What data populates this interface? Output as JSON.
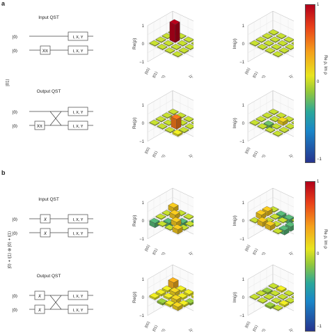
{
  "panels": [
    {
      "letter": "a",
      "side_label": "|01⟩",
      "input_title": "Input QST",
      "output_title": "Output QST",
      "circuit_in": {
        "rows": [
          {
            "state": "|0⟩",
            "gate": "",
            "meas": "I, X, Y"
          },
          {
            "state": "|0⟩",
            "gate": "Xπ",
            "meas": "I, X, Y"
          }
        ]
      },
      "circuit_out": {
        "rows": [
          {
            "state": "|0⟩",
            "gate": "",
            "meas": "I, X, Y"
          },
          {
            "state": "|0⟩",
            "gate": "Xπ",
            "meas": "I, X, Y"
          }
        ]
      },
      "colorbar": {
        "label": "Re ρ, Im ρ",
        "max": "1",
        "mid": "0",
        "min": "−1"
      }
    },
    {
      "letter": "b",
      "side_label": "|0⟩ + i|1⟩ ⊗ |0⟩ + i|1⟩",
      "input_title": "Input QST",
      "output_title": "Output QST",
      "circuit_in": {
        "rows": [
          {
            "state": "|0⟩",
            "gate": "X",
            "meas": "I, X, Y"
          },
          {
            "state": "|0⟩",
            "gate": "X",
            "meas": "I, X, Y"
          }
        ]
      },
      "circuit_out": {
        "rows": [
          {
            "state": "|0⟩",
            "gate": "X",
            "meas": "I, X, Y"
          },
          {
            "state": "|0⟩",
            "gate": "X",
            "meas": "I, X, Y"
          }
        ]
      },
      "colorbar": {
        "label": "Re ρ, Im ρ",
        "max": "1",
        "mid": "0",
        "min": "−1"
      }
    }
  ],
  "plot_axis": {
    "basis": [
      "|00⟩",
      "|01⟩",
      "|10⟩",
      "|11⟩"
    ],
    "z_ticks": [
      "1",
      "0",
      "−1"
    ],
    "re_label": "Re(ρ)",
    "im_label": "Im(ρ)"
  },
  "chart_data": [
    {
      "type": "bar3d",
      "panel": "a-in",
      "quantity": "Re",
      "basis": [
        "|00⟩",
        "|01⟩",
        "|10⟩",
        "|11⟩"
      ],
      "zlim": [
        -1,
        1
      ],
      "values": [
        [
          0,
          0,
          0,
          0
        ],
        [
          0,
          1,
          0,
          0
        ],
        [
          0,
          0,
          0,
          0
        ],
        [
          0,
          0,
          0,
          0
        ]
      ]
    },
    {
      "type": "bar3d",
      "panel": "a-in",
      "quantity": "Im",
      "basis": [
        "|00⟩",
        "|01⟩",
        "|10⟩",
        "|11⟩"
      ],
      "zlim": [
        -1,
        1
      ],
      "values": [
        [
          0,
          0,
          0,
          0
        ],
        [
          0,
          0,
          0,
          0
        ],
        [
          0,
          0,
          0,
          0
        ],
        [
          0,
          0,
          0,
          0
        ]
      ]
    },
    {
      "type": "bar3d",
      "panel": "a-out",
      "quantity": "Re",
      "basis": [
        "|00⟩",
        "|01⟩",
        "|10⟩",
        "|11⟩"
      ],
      "zlim": [
        -1,
        1
      ],
      "values": [
        [
          0,
          0,
          0,
          0
        ],
        [
          0,
          0.1,
          0,
          0
        ],
        [
          0,
          0,
          0.55,
          0
        ],
        [
          0,
          0,
          0,
          0.1
        ]
      ]
    },
    {
      "type": "bar3d",
      "panel": "a-out",
      "quantity": "Im",
      "basis": [
        "|00⟩",
        "|01⟩",
        "|10⟩",
        "|11⟩"
      ],
      "zlim": [
        -1,
        1
      ],
      "values": [
        [
          0,
          0,
          0,
          0
        ],
        [
          0,
          0,
          -0.2,
          0
        ],
        [
          0,
          0.2,
          0,
          0
        ],
        [
          0,
          0,
          0,
          0
        ]
      ]
    },
    {
      "type": "bar3d",
      "panel": "b-in",
      "quantity": "Re",
      "basis": [
        "|00⟩",
        "|01⟩",
        "|10⟩",
        "|11⟩"
      ],
      "zlim": [
        -1,
        1
      ],
      "values": [
        [
          0.25,
          0,
          0,
          -0.25
        ],
        [
          0,
          0.25,
          -0.25,
          0
        ],
        [
          0,
          -0.25,
          0.25,
          0
        ],
        [
          -0.25,
          0,
          0,
          0.25
        ]
      ]
    },
    {
      "type": "bar3d",
      "panel": "b-in",
      "quantity": "Im",
      "basis": [
        "|00⟩",
        "|01⟩",
        "|10⟩",
        "|11⟩"
      ],
      "zlim": [
        -1,
        1
      ],
      "values": [
        [
          0,
          0.25,
          0.25,
          0
        ],
        [
          -0.25,
          0,
          0,
          0.25
        ],
        [
          -0.25,
          0,
          0,
          0.25
        ],
        [
          0,
          -0.25,
          -0.25,
          0
        ]
      ]
    },
    {
      "type": "bar3d",
      "panel": "b-out",
      "quantity": "Re",
      "basis": [
        "|00⟩",
        "|01⟩",
        "|10⟩",
        "|11⟩"
      ],
      "zlim": [
        -1,
        1
      ],
      "values": [
        [
          0.35,
          0.1,
          0.1,
          0.1
        ],
        [
          0.1,
          0.2,
          0.1,
          -0.1
        ],
        [
          0.1,
          0.1,
          0.2,
          0.1
        ],
        [
          0.1,
          -0.1,
          0.1,
          0.2
        ]
      ]
    },
    {
      "type": "bar3d",
      "panel": "b-out",
      "quantity": "Im",
      "basis": [
        "|00⟩",
        "|01⟩",
        "|10⟩",
        "|11⟩"
      ],
      "zlim": [
        -1,
        1
      ],
      "values": [
        [
          0,
          -0.1,
          0,
          0
        ],
        [
          0.1,
          0,
          0,
          0
        ],
        [
          0,
          0,
          0,
          -0.1
        ],
        [
          0,
          0,
          0.1,
          0
        ]
      ]
    }
  ]
}
